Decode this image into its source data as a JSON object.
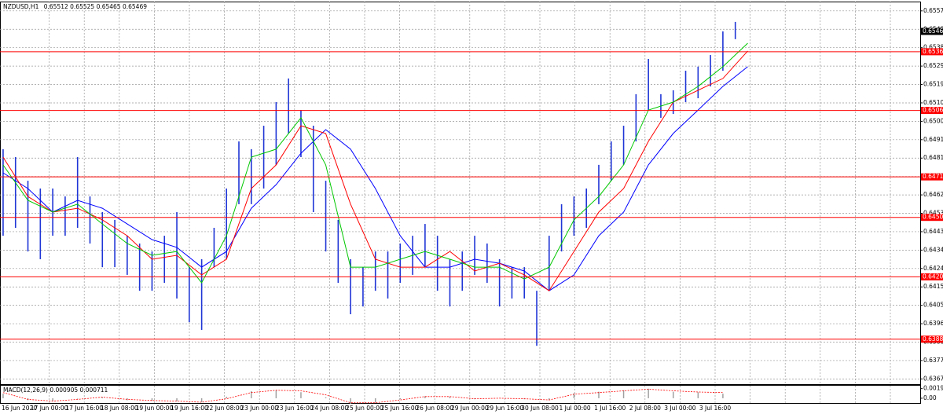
{
  "chart_data": [
    {
      "type": "hilo",
      "symbol": "NZDUSD,H1",
      "ohlc": [
        0.65512,
        0.65525,
        0.65465,
        0.65469
      ],
      "color": "#1f35d6",
      "xlim": [
        -0.25,
        73.9
      ],
      "ylim": [
        0.63648,
        0.65623
      ],
      "yticks": [
        0.65575,
        {
          "value": 0.6548,
          "label": "0.65480"
        },
        0.65385,
        {
          "value": 0.6529,
          "label": "0.65290"
        },
        0.65195,
        {
          "value": 0.651,
          "label": "0.65100"
        },
        0.65005,
        {
          "value": 0.6491,
          "label": "0.64910"
        },
        0.64815,
        {
          "value": 0.6472,
          "label": "0.64720"
        },
        0.64625,
        {
          "value": 0.6453,
          "label": "0.64530"
        },
        0.64435,
        {
          "value": 0.6434,
          "label": "0.64340"
        },
        0.64245,
        {
          "value": 0.6415,
          "label": "0.64150"
        },
        0.64055,
        {
          "value": 0.6396,
          "label": "0.63960"
        },
        0.63865,
        {
          "value": 0.6377,
          "label": "0.63770"
        },
        0.63675
      ],
      "grid": true,
      "xlabels": [
        "16 Jun 2020",
        "17 Jun 00:00",
        "17 Jun 16:00",
        "18 Jun 08:00",
        "19 Jun 00:00",
        "19 Jun 16:00",
        "22 Jun 08:00",
        "23 Jun 00:00",
        "23 Jun 16:00",
        "24 Jun 08:00",
        "25 Jun 00:00",
        "25 Jun 16:00",
        "26 Jun 08:00",
        "29 Jun 00:00",
        "29 Jun 16:00",
        "30 Jun 08:00",
        "1 Jul 00:00",
        "1 Jul 16:00",
        "2 Jul 08:00",
        "3 Jul 00:00",
        "3 Jul 16:00"
      ],
      "high": [
        0.64861,
        0.6482,
        0.64698,
        0.64658,
        0.64658,
        0.64617,
        0.6482,
        0.64617,
        0.64536,
        0.64496,
        0.64414,
        0.64374,
        0.64333,
        0.64414,
        0.64536,
        0.64252,
        0.64293,
        0.64455,
        0.64658,
        0.64901,
        0.64861,
        0.64982,
        0.65104,
        0.65226,
        0.65063,
        0.64982,
        0.64698,
        0.64496,
        0.64293,
        0.64252,
        0.64333,
        0.64333,
        0.64374,
        0.64414,
        0.64475,
        0.64414,
        0.64293,
        0.64333,
        0.64414,
        0.64374,
        0.64293,
        0.64252,
        0.64252,
        0.6413,
        0.64414,
        0.64577,
        0.64617,
        0.64658,
        0.6478,
        0.64901,
        0.64982,
        0.65145,
        0.65327,
        0.65145,
        0.65165,
        0.65266,
        0.65287,
        0.65347,
        0.65469,
        0.65518
      ],
      "low": [
        0.64414,
        0.64455,
        0.64333,
        0.64293,
        0.64414,
        0.64414,
        0.64455,
        0.64374,
        0.64252,
        0.64252,
        0.64212,
        0.6413,
        0.6413,
        0.64171,
        0.6409,
        0.63968,
        0.63928,
        0.64252,
        0.64293,
        0.64577,
        0.64577,
        0.64658,
        0.6478,
        0.64942,
        0.6482,
        0.64536,
        0.64333,
        0.64171,
        0.64009,
        0.64049,
        0.6413,
        0.6409,
        0.64171,
        0.64212,
        0.64252,
        0.6413,
        0.64049,
        0.6413,
        0.64212,
        0.64171,
        0.64049,
        0.6409,
        0.6409,
        0.63846,
        0.6413,
        0.64333,
        0.64414,
        0.64455,
        0.64577,
        0.64698,
        0.6478,
        0.64901,
        0.65063,
        0.65023,
        0.65043,
        0.65104,
        0.65124,
        0.65185,
        0.65266,
        0.65429
      ],
      "ma": [
        {
          "color": "#0000ff",
          "x": [
            0,
            2,
            4,
            6,
            8,
            10,
            12,
            14,
            16,
            18,
            20,
            22,
            24,
            26,
            28,
            30,
            32,
            34,
            36,
            38,
            40,
            42,
            44,
            46,
            48,
            50,
            52,
            54,
            56,
            58,
            60
          ],
          "values": [
            0.64739,
            0.64658,
            0.64536,
            0.64597,
            0.64556,
            0.64475,
            0.64394,
            0.64354,
            0.64252,
            0.64333,
            0.64556,
            0.64678,
            0.6484,
            0.64962,
            0.64861,
            0.64658,
            0.64414,
            0.64252,
            0.64252,
            0.64293,
            0.64272,
            0.64232,
            0.6413,
            0.64212,
            0.64414,
            0.64536,
            0.6478,
            0.64942,
            0.65063,
            0.65185,
            0.65287
          ]
        },
        {
          "color": "#ff0000",
          "x": [
            0,
            2,
            4,
            6,
            8,
            10,
            12,
            14,
            16,
            18,
            20,
            22,
            24,
            26,
            28,
            30,
            32,
            34,
            36,
            38,
            40,
            42,
            44,
            46,
            48,
            50,
            52,
            54,
            56,
            58,
            60
          ],
          "values": [
            0.6482,
            0.64617,
            0.64536,
            0.64556,
            0.64496,
            0.64414,
            0.64293,
            0.64313,
            0.64212,
            0.64293,
            0.64658,
            0.6478,
            0.64982,
            0.64942,
            0.64577,
            0.64293,
            0.64252,
            0.64252,
            0.64333,
            0.64232,
            0.64272,
            0.64212,
            0.6413,
            0.64333,
            0.64536,
            0.64658,
            0.64901,
            0.65104,
            0.65165,
            0.65226,
            0.65368
          ]
        },
        {
          "color": "#00c800",
          "x": [
            0,
            2,
            4,
            6,
            8,
            10,
            12,
            14,
            16,
            18,
            20,
            22,
            24,
            26,
            28,
            30,
            32,
            34,
            36,
            38,
            40,
            42,
            44,
            46,
            48,
            50,
            52,
            54,
            56,
            58,
            60
          ],
          "values": [
            0.6478,
            0.64597,
            0.64536,
            0.64577,
            0.64475,
            0.64374,
            0.64313,
            0.64333,
            0.64171,
            0.64414,
            0.6482,
            0.64861,
            0.65023,
            0.6478,
            0.64252,
            0.64252,
            0.64293,
            0.64333,
            0.64293,
            0.64252,
            0.64252,
            0.64191,
            0.64252,
            0.64496,
            0.64617,
            0.6478,
            0.65063,
            0.65104,
            0.65185,
            0.65287,
            0.65408
          ]
        }
      ],
      "levels": [
        0.65364,
        0.65061,
        0.64718,
        0.64509,
        0.64202,
        {
          "value": 0.6388,
          "label": "0.63880"
        }
      ],
      "level_color": "#ff0000",
      "current_price": 0.65469
    },
    {
      "type": "macd",
      "label": "MACD(12,26,9) 0.000905 0.000711",
      "xlim": [
        -0.25,
        73.9
      ],
      "ylim": [
        -0.00095,
        0.00265
      ],
      "yticks": [
        0.001917,
        {
          "value": 0,
          "label": "0.00"
        }
      ],
      "x": [
        0,
        2,
        4,
        6,
        8,
        10,
        12,
        14,
        16,
        18,
        20,
        22,
        24,
        26,
        28,
        30,
        32,
        34,
        36,
        38,
        40,
        42,
        44,
        46,
        48,
        50,
        52,
        54,
        56,
        58
      ],
      "histogram": [
        0.0009,
        -0.0004,
        -0.0006,
        -0.0001,
        0.0002,
        -0.0004,
        -0.0005,
        -0.0006,
        -0.0008,
        0.0003,
        0.0014,
        0.0016,
        0.0012,
        0.0002,
        -0.0011,
        -0.0009,
        -0.0002,
        0.0004,
        0.0003,
        -0.0002,
        0,
        -0.0002,
        -0.0003,
        0.001,
        0.0013,
        0.0016,
        0.0019,
        0.0013,
        0.0012,
        0.0009
      ],
      "signal": [
        0.00113,
        -0.00023,
        -0.00057,
        -0.00023,
        0.00023,
        -0.00023,
        -0.00045,
        -0.00057,
        -0.00079,
        -0.00011,
        0.00113,
        0.00158,
        0.00147,
        0.00068,
        -0.0009,
        -0.0009,
        -0.00034,
        0.00034,
        0.00034,
        -0.00011,
        0,
        -0.00011,
        -0.00034,
        0.00079,
        0.00113,
        0.00147,
        0.00181,
        0.00147,
        0.00124,
        0.00113
      ],
      "histogram_color": "#a0a0a0",
      "signal_color": "#ff0000"
    }
  ]
}
